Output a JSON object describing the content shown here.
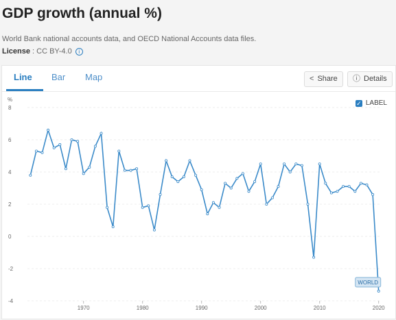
{
  "title": "GDP growth (annual %)",
  "source": "World Bank national accounts data, and OECD National Accounts data files.",
  "license": {
    "label": "License",
    "separator": " : ",
    "value": "CC BY-4.0"
  },
  "tabs": [
    {
      "label": "Line",
      "active": true
    },
    {
      "label": "Bar",
      "active": false
    },
    {
      "label": "Map",
      "active": false
    }
  ],
  "buttons": {
    "share": "Share",
    "details": "Details"
  },
  "legend": {
    "label": "LABEL",
    "checked": true
  },
  "colors": {
    "accent": "#2a7ec0",
    "series": "#3a8ac9"
  },
  "chart_data": {
    "type": "line",
    "title": "",
    "ylabel": "%",
    "xlabel": "",
    "ylim": [
      -4,
      8
    ],
    "y_ticks": [
      -4,
      -2,
      0,
      2,
      4,
      6,
      8
    ],
    "xlim": [
      1960.5,
      2020.5
    ],
    "x_ticks": [
      1970,
      1980,
      1990,
      2000,
      2010,
      2020
    ],
    "grid": true,
    "series": [
      {
        "name": "WORLD",
        "x": [
          1961,
          1962,
          1963,
          1964,
          1965,
          1966,
          1967,
          1968,
          1969,
          1970,
          1971,
          1972,
          1973,
          1974,
          1975,
          1976,
          1977,
          1978,
          1979,
          1980,
          1981,
          1982,
          1983,
          1984,
          1985,
          1986,
          1987,
          1988,
          1989,
          1990,
          1991,
          1992,
          1993,
          1994,
          1995,
          1996,
          1997,
          1998,
          1999,
          2000,
          2001,
          2002,
          2003,
          2004,
          2005,
          2006,
          2007,
          2008,
          2009,
          2010,
          2011,
          2012,
          2013,
          2014,
          2015,
          2016,
          2017,
          2018,
          2019,
          2020
        ],
        "values": [
          3.8,
          5.3,
          5.2,
          6.6,
          5.5,
          5.7,
          4.2,
          6.0,
          5.9,
          3.9,
          4.3,
          5.6,
          6.4,
          1.8,
          0.6,
          5.3,
          4.1,
          4.1,
          4.2,
          1.8,
          1.9,
          0.4,
          2.6,
          4.7,
          3.7,
          3.4,
          3.7,
          4.7,
          3.8,
          2.9,
          1.4,
          2.1,
          1.8,
          3.3,
          3.0,
          3.6,
          3.9,
          2.8,
          3.4,
          4.5,
          2.0,
          2.4,
          3.1,
          4.5,
          4.0,
          4.5,
          4.4,
          2.0,
          -1.3,
          4.5,
          3.3,
          2.7,
          2.8,
          3.1,
          3.1,
          2.8,
          3.3,
          3.2,
          2.6,
          -3.4
        ]
      }
    ]
  }
}
